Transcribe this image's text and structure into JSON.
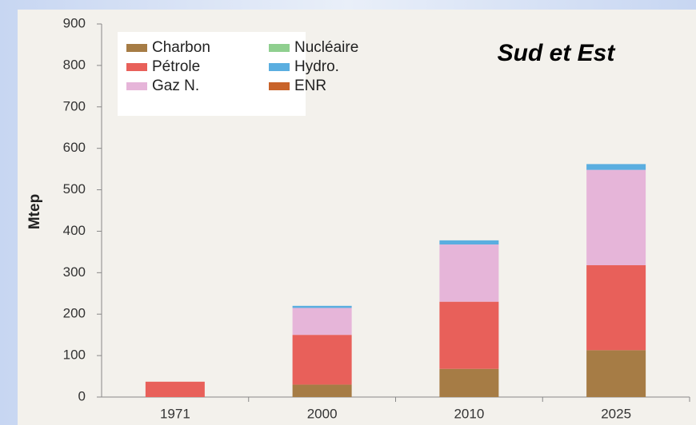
{
  "chart_data": {
    "type": "stacked_bar",
    "title": "Sud et Est",
    "ylabel": "Mtep",
    "categories": [
      "1971",
      "2000",
      "2010",
      "2025"
    ],
    "series": [
      {
        "name": "Charbon",
        "color": "#a67c45",
        "values": [
          0,
          30,
          68,
          113
        ]
      },
      {
        "name": "Pétrole",
        "color": "#e8605a",
        "values": [
          37,
          120,
          162,
          205
        ]
      },
      {
        "name": "Gaz N.",
        "color": "#e6b5d9",
        "values": [
          0,
          65,
          138,
          230
        ]
      },
      {
        "name": "Nucléaire",
        "color": "#8fcf8f",
        "values": [
          0,
          0,
          0,
          0
        ]
      },
      {
        "name": "Hydro.",
        "color": "#5aaee0",
        "values": [
          0,
          5,
          10,
          14
        ]
      },
      {
        "name": "ENR",
        "color": "#c8632a",
        "values": [
          0,
          0,
          0,
          0
        ]
      }
    ],
    "ylim": [
      0,
      900
    ],
    "yticks": [
      0,
      100,
      200,
      300,
      400,
      500,
      600,
      700,
      800,
      900
    ],
    "grid": false
  }
}
